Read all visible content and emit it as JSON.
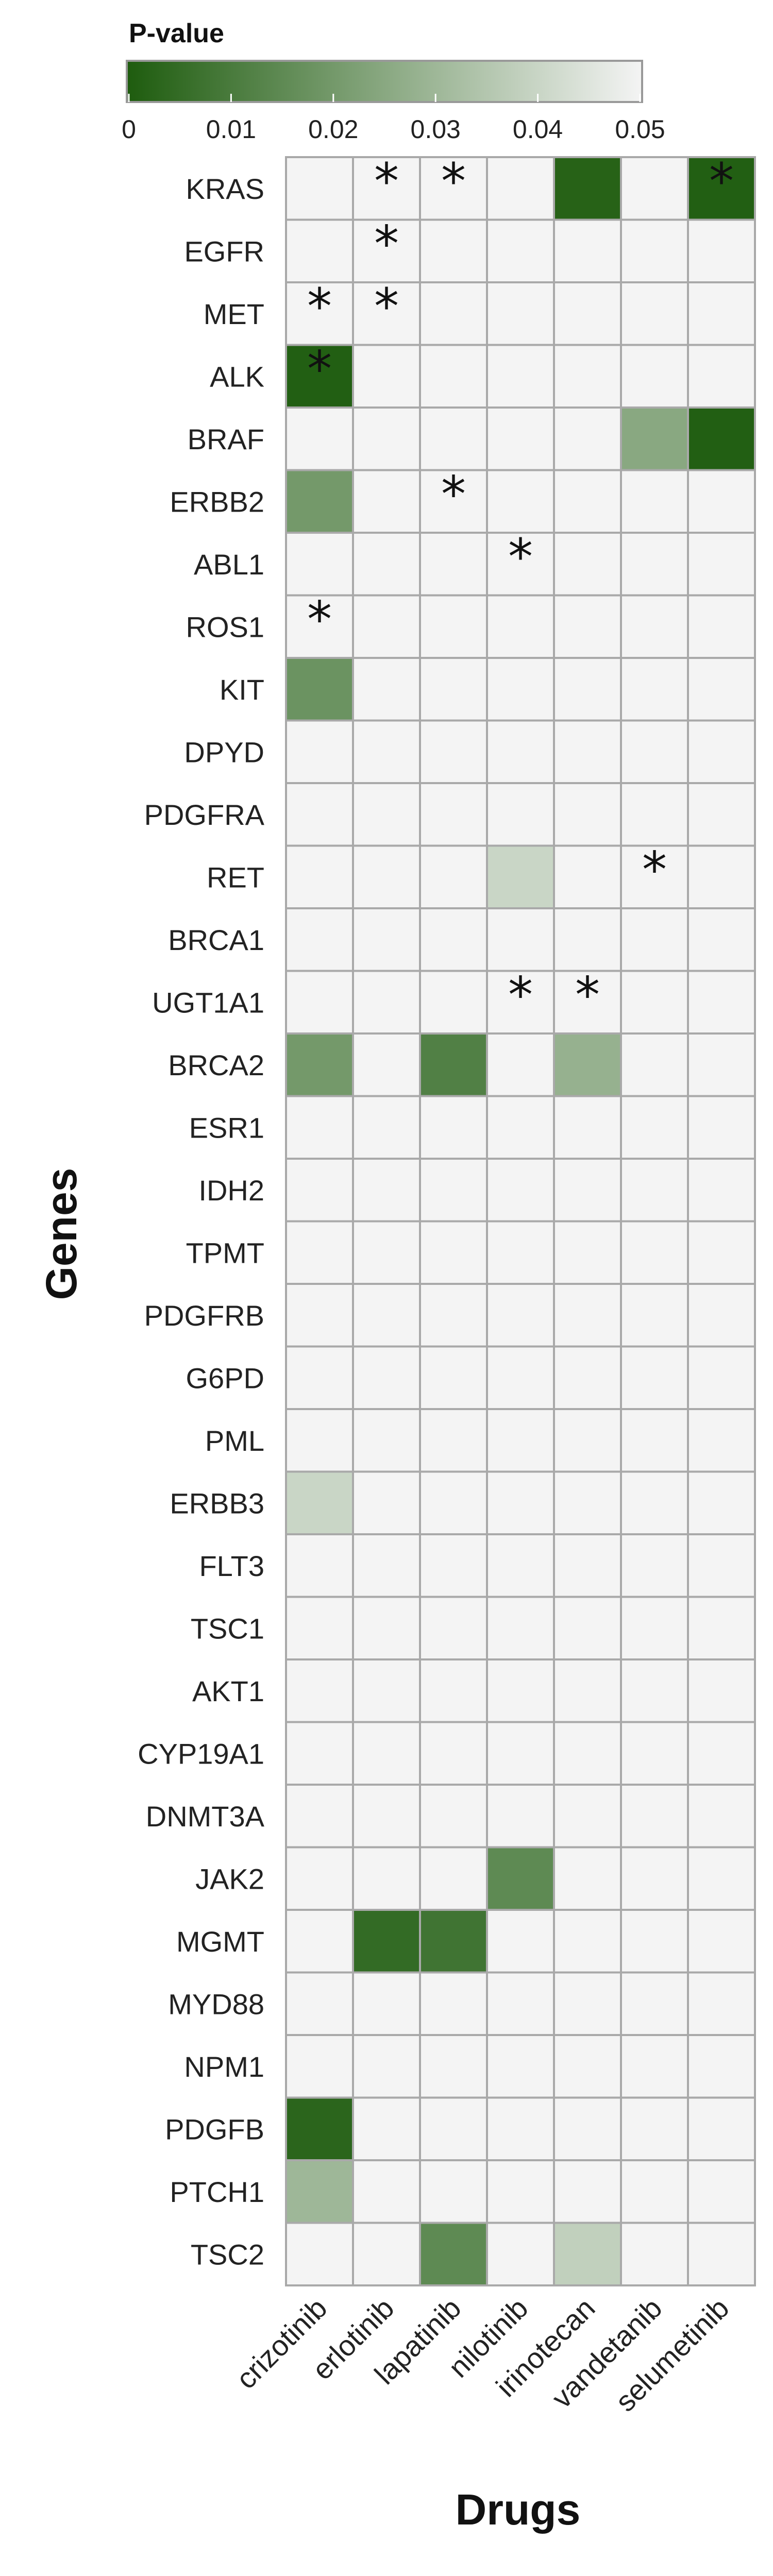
{
  "chart_data": {
    "type": "heatmap",
    "legend": {
      "title": "P-value",
      "ticks": [
        "0",
        "0.01",
        "0.02",
        "0.03",
        "0.04",
        "0.05"
      ],
      "range": [
        0,
        0.05
      ]
    },
    "colors": {
      "low": "#1e5c0e",
      "high": "#f4f4f4",
      "empty": "#f4f4f4",
      "grid": "#a9a9a9"
    },
    "xlabel": "Drugs",
    "ylabel": "Genes",
    "drugs": [
      "crizotinib",
      "erlotinib",
      "lapatinib",
      "nilotinib",
      "irinotecan",
      "vandetanib",
      "selumetinib"
    ],
    "genes": [
      "KRAS",
      "EGFR",
      "MET",
      "ALK",
      "BRAF",
      "ERBB2",
      "ABL1",
      "ROS1",
      "KIT",
      "DPYD",
      "PDGFRA",
      "RET",
      "BRCA1",
      "UGT1A1",
      "BRCA2",
      "ESR1",
      "IDH2",
      "TPMT",
      "PDGFRB",
      "G6PD",
      "PML",
      "ERBB3",
      "FLT3",
      "TSC1",
      "AKT1",
      "CYP19A1",
      "DNMT3A",
      "JAK2",
      "MGMT",
      "MYD88",
      "NPM1",
      "PDGFB",
      "PTCH1",
      "TSC2"
    ],
    "cells": [
      {
        "gene": "KRAS",
        "drug": "irinotecan",
        "p": 0.002
      },
      {
        "gene": "KRAS",
        "drug": "selumetinib",
        "p": 0.001
      },
      {
        "gene": "ALK",
        "drug": "crizotinib",
        "p": 0.001
      },
      {
        "gene": "BRAF",
        "drug": "vandetanib",
        "p": 0.025
      },
      {
        "gene": "BRAF",
        "drug": "selumetinib",
        "p": 0.001
      },
      {
        "gene": "ERBB2",
        "drug": "crizotinib",
        "p": 0.02
      },
      {
        "gene": "KIT",
        "drug": "crizotinib",
        "p": 0.018
      },
      {
        "gene": "RET",
        "drug": "nilotinib",
        "p": 0.04
      },
      {
        "gene": "BRCA2",
        "drug": "crizotinib",
        "p": 0.02
      },
      {
        "gene": "BRCA2",
        "drug": "lapatinib",
        "p": 0.012
      },
      {
        "gene": "BRCA2",
        "drug": "irinotecan",
        "p": 0.028
      },
      {
        "gene": "ERBB3",
        "drug": "crizotinib",
        "p": 0.04
      },
      {
        "gene": "JAK2",
        "drug": "nilotinib",
        "p": 0.015
      },
      {
        "gene": "MGMT",
        "drug": "erlotinib",
        "p": 0.005
      },
      {
        "gene": "MGMT",
        "drug": "lapatinib",
        "p": 0.008
      },
      {
        "gene": "PDGFB",
        "drug": "crizotinib",
        "p": 0.003
      },
      {
        "gene": "PTCH1",
        "drug": "crizotinib",
        "p": 0.03
      },
      {
        "gene": "TSC2",
        "drug": "lapatinib",
        "p": 0.015
      },
      {
        "gene": "TSC2",
        "drug": "irinotecan",
        "p": 0.038
      }
    ],
    "stars": [
      {
        "gene": "KRAS",
        "drug": "erlotinib",
        "label": "*"
      },
      {
        "gene": "KRAS",
        "drug": "lapatinib",
        "label": "*"
      },
      {
        "gene": "KRAS",
        "drug": "selumetinib",
        "label": "*"
      },
      {
        "gene": "EGFR",
        "drug": "erlotinib",
        "label": "*"
      },
      {
        "gene": "MET",
        "drug": "crizotinib",
        "label": "*"
      },
      {
        "gene": "MET",
        "drug": "erlotinib",
        "label": "*"
      },
      {
        "gene": "ALK",
        "drug": "crizotinib",
        "label": "*"
      },
      {
        "gene": "ERBB2",
        "drug": "lapatinib",
        "label": "*"
      },
      {
        "gene": "ABL1",
        "drug": "nilotinib",
        "label": "*"
      },
      {
        "gene": "ROS1",
        "drug": "crizotinib",
        "label": "*"
      },
      {
        "gene": "RET",
        "drug": "vandetanib",
        "label": "*"
      },
      {
        "gene": "UGT1A1",
        "drug": "nilotinib",
        "label": "*"
      },
      {
        "gene": "UGT1A1",
        "drug": "irinotecan",
        "label": "*"
      }
    ]
  }
}
